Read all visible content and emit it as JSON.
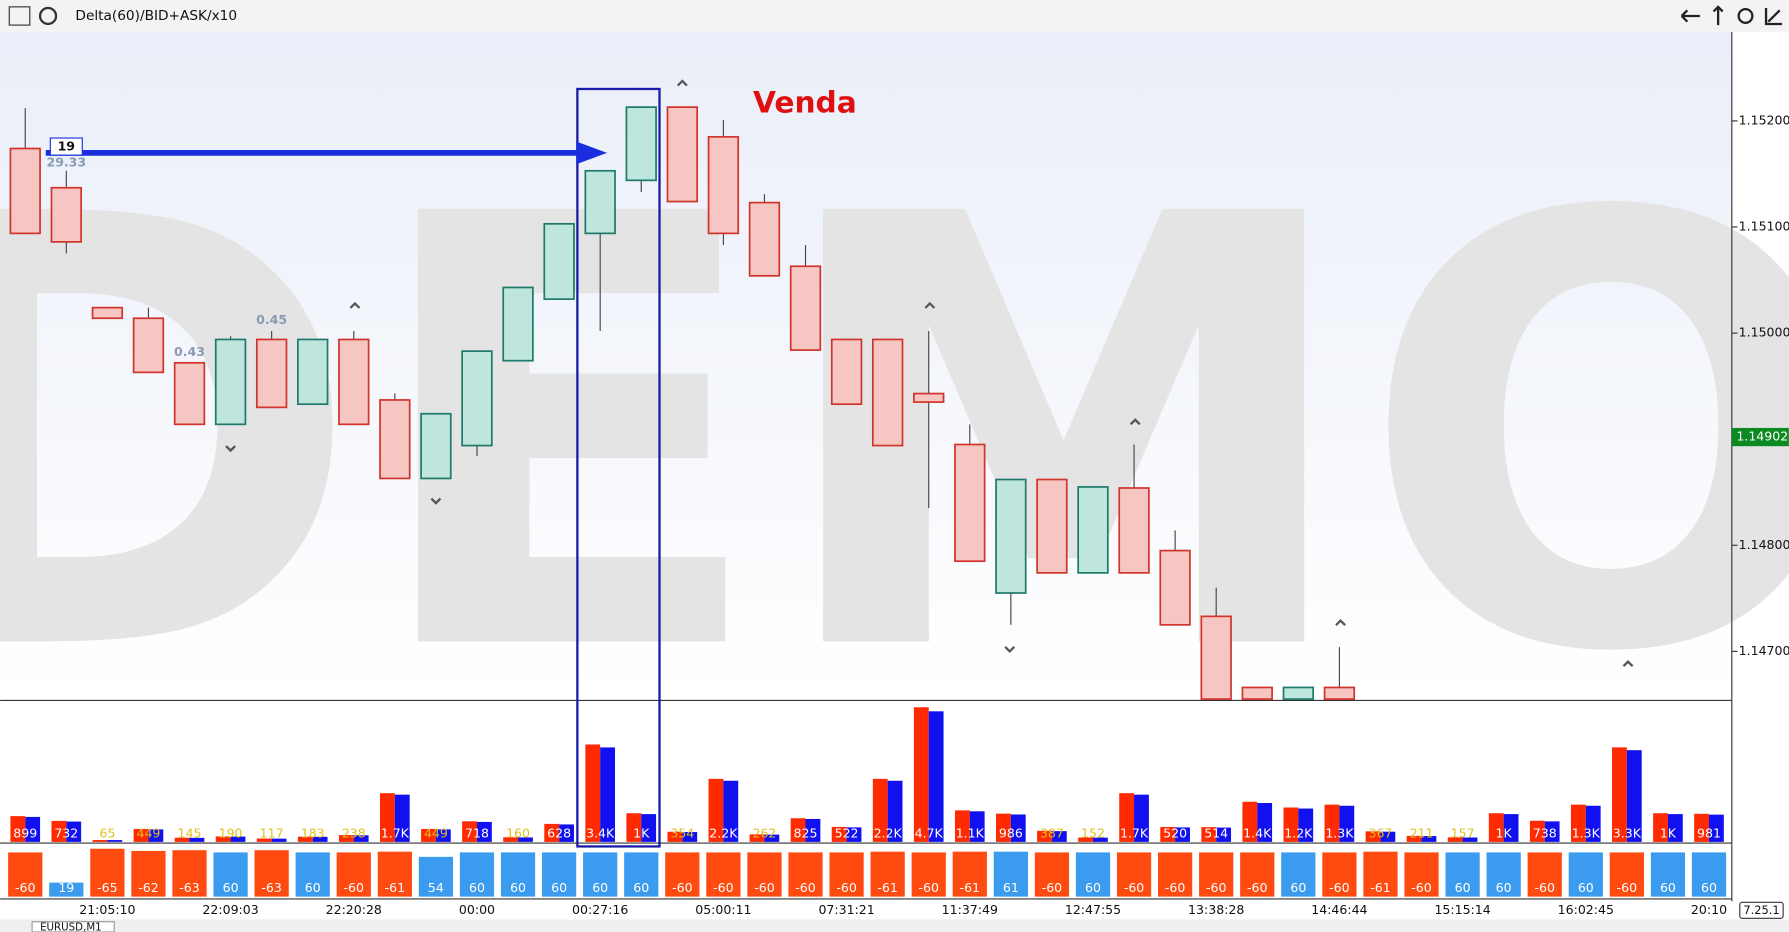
{
  "header": {
    "title": "Delta(60)/BID+ASK/x10"
  },
  "price_axis": {
    "ticks": [
      {
        "value": 1.152,
        "label": "1.15200"
      },
      {
        "value": 1.151,
        "label": "1.15100"
      },
      {
        "value": 1.15,
        "label": "1.15000"
      },
      {
        "value": 1.148,
        "label": "1.14800"
      },
      {
        "value": 1.147,
        "label": "1.14700"
      }
    ],
    "current": {
      "value": 1.14902,
      "label": "1.14902"
    }
  },
  "candles": {
    "open": [
      1.15174,
      1.15137,
      1.15024,
      1.15014,
      1.14972,
      1.14914,
      1.14994,
      1.14933,
      1.14994,
      1.14937,
      1.14863,
      1.14894,
      1.14974,
      1.15032,
      1.15094,
      1.15144,
      1.15213,
      1.15185,
      1.15123,
      1.15063,
      1.14994,
      1.14994,
      1.14943,
      1.14895,
      1.14755,
      1.14862,
      1.14774,
      1.14854,
      1.14795,
      1.14733,
      1.14666,
      1.14655,
      1.14666
    ],
    "high": [
      1.15212,
      1.15153,
      1.15024,
      1.15024,
      1.14972,
      1.14997,
      1.15002,
      1.14994,
      1.15002,
      1.14943,
      1.14924,
      1.14983,
      1.15043,
      1.15103,
      1.15153,
      1.15213,
      1.15213,
      1.15201,
      1.15131,
      1.15083,
      1.14994,
      1.14994,
      1.15002,
      1.14914,
      1.14862,
      1.14862,
      1.14855,
      1.14895,
      1.14814,
      1.1476,
      1.14666,
      1.14666,
      1.14704
    ],
    "low": [
      1.15094,
      1.15075,
      1.15014,
      1.14963,
      1.14914,
      1.14914,
      1.1493,
      1.14933,
      1.14914,
      1.14863,
      1.14863,
      1.14884,
      1.14974,
      1.15032,
      1.15002,
      1.15133,
      1.15124,
      1.15083,
      1.15054,
      1.14984,
      1.14933,
      1.14894,
      1.14835,
      1.14785,
      1.14725,
      1.14774,
      1.14774,
      1.14774,
      1.14725,
      1.14655,
      1.14655,
      1.14655,
      1.14655
    ],
    "close": [
      1.15094,
      1.15086,
      1.15014,
      1.14963,
      1.14914,
      1.14994,
      1.1493,
      1.14994,
      1.14914,
      1.14863,
      1.14924,
      1.14983,
      1.15043,
      1.15103,
      1.15153,
      1.15213,
      1.15124,
      1.15094,
      1.15054,
      1.14984,
      1.14933,
      1.14894,
      1.14935,
      1.14785,
      1.14862,
      1.14774,
      1.14855,
      1.14774,
      1.14725,
      1.14655,
      1.14655,
      1.14666,
      1.14655
    ]
  },
  "volume": {
    "values": [
      899,
      732,
      65,
      449,
      145,
      190,
      117,
      183,
      238,
      1700,
      449,
      718,
      160,
      628,
      3400,
      1000,
      354,
      2200,
      262,
      825,
      522,
      2200,
      4700,
      1100,
      986,
      387,
      152,
      1700,
      520,
      514,
      1400,
      1200,
      1300,
      367,
      211,
      157,
      1000,
      738,
      1300,
      3300,
      1000,
      981
    ],
    "value_labels": [
      "899",
      "732",
      "65",
      "449",
      "145",
      "190",
      "117",
      "183",
      "238",
      "1.7K",
      "449",
      "718",
      "160",
      "628",
      "3.4K",
      "1K",
      "354",
      "2.2K",
      "262",
      "825",
      "522",
      "2.2K",
      "4.7K",
      "1.1K",
      "986",
      "387",
      "152",
      "1.7K",
      "520",
      "514",
      "1.4K",
      "1.2K",
      "1.3K",
      "367",
      "211",
      "157",
      "1K",
      "738",
      "1.3K",
      "3.3K",
      "1K",
      "981"
    ]
  },
  "delta": {
    "values": [
      -60,
      19,
      -65,
      -62,
      -63,
      60,
      -63,
      60,
      -60,
      -61,
      54,
      60,
      60,
      60,
      60,
      60,
      -60,
      -60,
      -60,
      -60,
      -60,
      -61,
      -60,
      -61,
      61,
      -60,
      60,
      -60,
      -60,
      -60,
      -60,
      60,
      -60,
      -61,
      -60,
      60,
      60,
      -60,
      60,
      -60,
      60,
      60
    ]
  },
  "time_axis": {
    "labels": [
      "21:05:10",
      "22:09:03",
      "22:20:28",
      "00:00",
      "00:27:16",
      "05:00:11",
      "07:31:21",
      "11:37:49",
      "12:47:55",
      "13:38:28",
      "14:46:44",
      "15:15:14",
      "16:02:45",
      "20:10"
    ]
  },
  "annotations": {
    "venda": "Venda",
    "level_box": "19",
    "level_value": "29.33",
    "note_a": "0.45",
    "note_b": "0.43"
  },
  "footer": {
    "version": "7.25.1",
    "tab": "EURUSD,M1"
  }
}
